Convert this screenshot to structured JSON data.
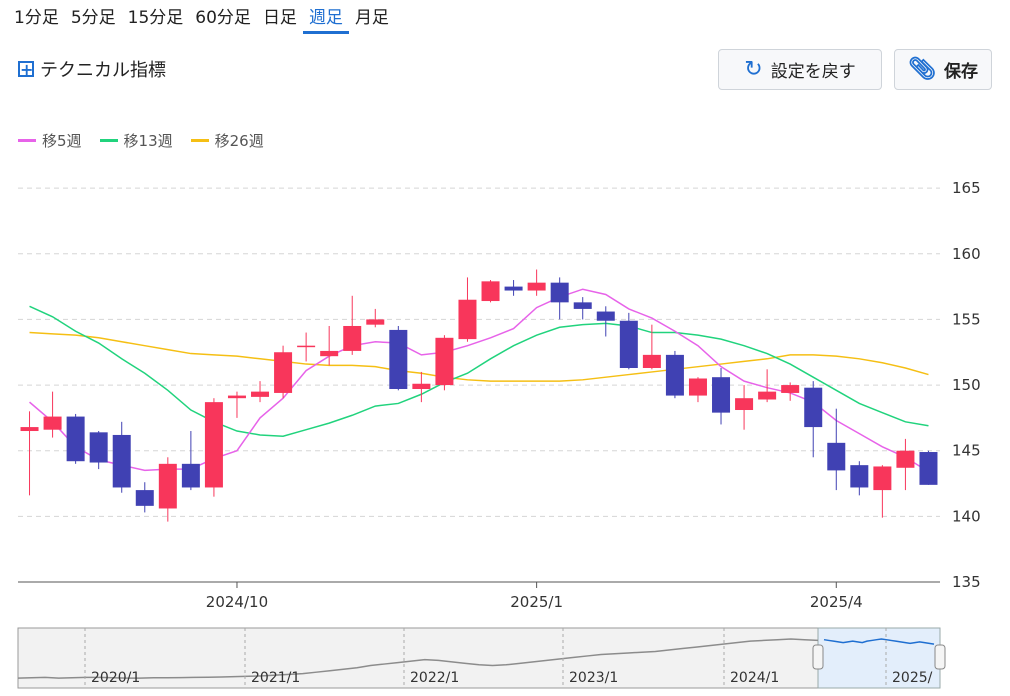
{
  "tabs": [
    {
      "label": "1分足",
      "active": false
    },
    {
      "label": "5分足",
      "active": false
    },
    {
      "label": "15分足",
      "active": false
    },
    {
      "label": "60分足",
      "active": false
    },
    {
      "label": "日足",
      "active": false
    },
    {
      "label": "週足",
      "active": true
    },
    {
      "label": "月足",
      "active": false
    }
  ],
  "technical_label": "テクニカル指標",
  "buttons": {
    "reset_label": "設定を戻す",
    "save_label": "保存"
  },
  "colors": {
    "up": "#f8365b",
    "down": "#4041b3",
    "ma5": "#e763e9",
    "ma13": "#21d37d",
    "ma26": "#f5bf14",
    "accent": "#1f6fd1"
  },
  "chart_data": {
    "type": "candlestick",
    "legend": [
      {
        "name": "移5週",
        "color": "#e763e9"
      },
      {
        "name": "移13週",
        "color": "#21d37d"
      },
      {
        "name": "移26週",
        "color": "#f5bf14"
      }
    ],
    "y_ticks": [
      165,
      160,
      155,
      150,
      145,
      140,
      135
    ],
    "ylim": [
      135,
      166
    ],
    "x_ticks": [
      {
        "label": "2024/10",
        "index": 9
      },
      {
        "label": "2025/1",
        "index": 22
      },
      {
        "label": "2025/4",
        "index": 35
      }
    ],
    "candles": [
      {
        "o": 146.5,
        "h": 148,
        "l": 141.6,
        "c": 146.8
      },
      {
        "o": 146.6,
        "h": 149.5,
        "l": 146.0,
        "c": 147.6
      },
      {
        "o": 147.6,
        "h": 147.8,
        "l": 144.0,
        "c": 144.2
      },
      {
        "o": 146.4,
        "h": 146.5,
        "l": 143.6,
        "c": 144.1
      },
      {
        "o": 146.2,
        "h": 147.2,
        "l": 141.8,
        "c": 142.2
      },
      {
        "o": 142.0,
        "h": 142.6,
        "l": 140.3,
        "c": 140.8
      },
      {
        "o": 140.6,
        "h": 144.5,
        "l": 139.6,
        "c": 144.0
      },
      {
        "o": 144.0,
        "h": 146.5,
        "l": 142.0,
        "c": 142.2
      },
      {
        "o": 142.2,
        "h": 149.0,
        "l": 141.5,
        "c": 148.7
      },
      {
        "o": 149.0,
        "h": 149.5,
        "l": 147.5,
        "c": 149.2
      },
      {
        "o": 149.1,
        "h": 150.3,
        "l": 148.7,
        "c": 149.5
      },
      {
        "o": 149.4,
        "h": 153.0,
        "l": 149.0,
        "c": 152.5
      },
      {
        "o": 153.0,
        "h": 154.0,
        "l": 151.8,
        "c": 153.0
      },
      {
        "o": 152.2,
        "h": 154.5,
        "l": 151.5,
        "c": 152.6
      },
      {
        "o": 152.6,
        "h": 156.8,
        "l": 152.3,
        "c": 154.5
      },
      {
        "o": 154.6,
        "h": 155.8,
        "l": 154.4,
        "c": 155.0
      },
      {
        "o": 154.2,
        "h": 154.5,
        "l": 149.6,
        "c": 149.7
      },
      {
        "o": 149.7,
        "h": 151.0,
        "l": 148.7,
        "c": 150.1
      },
      {
        "o": 150.0,
        "h": 153.8,
        "l": 149.6,
        "c": 153.6
      },
      {
        "o": 153.5,
        "h": 158.2,
        "l": 153.3,
        "c": 156.5
      },
      {
        "o": 156.4,
        "h": 158.0,
        "l": 156.3,
        "c": 157.9
      },
      {
        "o": 157.5,
        "h": 158.0,
        "l": 156.8,
        "c": 157.2
      },
      {
        "o": 157.2,
        "h": 158.8,
        "l": 156.8,
        "c": 157.8
      },
      {
        "o": 157.8,
        "h": 158.2,
        "l": 155.0,
        "c": 156.3
      },
      {
        "o": 156.3,
        "h": 156.7,
        "l": 155.0,
        "c": 155.8
      },
      {
        "o": 155.6,
        "h": 156.0,
        "l": 153.7,
        "c": 154.9
      },
      {
        "o": 154.9,
        "h": 155.5,
        "l": 151.2,
        "c": 151.3
      },
      {
        "o": 151.3,
        "h": 154.6,
        "l": 151.2,
        "c": 152.3
      },
      {
        "o": 152.3,
        "h": 152.6,
        "l": 149.0,
        "c": 149.2
      },
      {
        "o": 149.2,
        "h": 150.6,
        "l": 148.7,
        "c": 150.5
      },
      {
        "o": 150.6,
        "h": 151.3,
        "l": 147.0,
        "c": 147.9
      },
      {
        "o": 148.1,
        "h": 150.0,
        "l": 146.6,
        "c": 149.0
      },
      {
        "o": 148.9,
        "h": 151.2,
        "l": 148.7,
        "c": 149.5
      },
      {
        "o": 149.4,
        "h": 150.2,
        "l": 148.8,
        "c": 150.0
      },
      {
        "o": 149.8,
        "h": 150.3,
        "l": 144.5,
        "c": 146.8
      },
      {
        "o": 145.6,
        "h": 148.2,
        "l": 142.0,
        "c": 143.5
      },
      {
        "o": 143.9,
        "h": 144.2,
        "l": 141.6,
        "c": 142.2
      },
      {
        "o": 142.0,
        "h": 143.9,
        "l": 139.9,
        "c": 143.8
      },
      {
        "o": 143.7,
        "h": 145.9,
        "l": 142.0,
        "c": 145.0
      },
      {
        "o": 144.9,
        "h": 145.0,
        "l": 142.4,
        "c": 142.4
      }
    ],
    "ma5": [
      148.7,
      147.2,
      145.3,
      144.3,
      143.9,
      143.5,
      143.6,
      143.6,
      144.4,
      145.0,
      147.5,
      149.0,
      151.1,
      152.2,
      153.0,
      153.3,
      153.2,
      152.3,
      152.5,
      153.0,
      153.6,
      154.3,
      155.9,
      156.7,
      157.3,
      156.9,
      155.8,
      155.1,
      154.1,
      153.0,
      151.4,
      150.3,
      149.8,
      149.4,
      148.7,
      147.3,
      146.3,
      145.3,
      144.5,
      143.4
    ],
    "ma13": [
      156.0,
      155.2,
      154.1,
      153.2,
      152.0,
      150.9,
      149.6,
      148.1,
      147.2,
      146.5,
      146.2,
      146.1,
      146.6,
      147.1,
      147.7,
      148.4,
      148.6,
      149.3,
      150.2,
      150.9,
      152.0,
      153.0,
      153.8,
      154.4,
      154.6,
      154.7,
      154.5,
      154.0,
      154.0,
      153.8,
      153.5,
      153.0,
      152.4,
      151.6,
      150.6,
      149.6,
      148.6,
      147.9,
      147.2,
      146.9
    ],
    "ma26": [
      154.0,
      153.9,
      153.8,
      153.6,
      153.3,
      153.0,
      152.7,
      152.4,
      152.3,
      152.2,
      152.0,
      151.8,
      151.6,
      151.5,
      151.5,
      151.4,
      151.1,
      150.9,
      150.6,
      150.4,
      150.3,
      150.3,
      150.3,
      150.3,
      150.4,
      150.6,
      150.8,
      151.0,
      151.2,
      151.4,
      151.6,
      151.8,
      152.0,
      152.3,
      152.3,
      152.2,
      152.0,
      151.7,
      151.3,
      150.8
    ],
    "navigator": {
      "ticks": [
        "2020/1",
        "2021/1",
        "2022/1",
        "2023/1",
        "2024/1",
        "2025/"
      ],
      "values": [
        108,
        108.5,
        109,
        108,
        108.5,
        109,
        109,
        108.5,
        108,
        108,
        108.5,
        108.5,
        108.7,
        109,
        109.2,
        109.5,
        110,
        110.5,
        111,
        112,
        113,
        114,
        116,
        118,
        120,
        122,
        125,
        127,
        129,
        131,
        133,
        132,
        130,
        128,
        126,
        125,
        126,
        128,
        130,
        132,
        134,
        136,
        138,
        140,
        141,
        142,
        143,
        144,
        146,
        148,
        150,
        152,
        154,
        156,
        158,
        159,
        160,
        161,
        160,
        159
      ],
      "window_values": [
        160,
        159,
        158,
        157,
        156,
        157,
        158,
        157,
        156,
        158,
        159,
        160,
        161,
        160,
        159,
        158,
        157,
        156,
        155,
        156,
        157,
        156,
        155,
        154
      ]
    }
  }
}
